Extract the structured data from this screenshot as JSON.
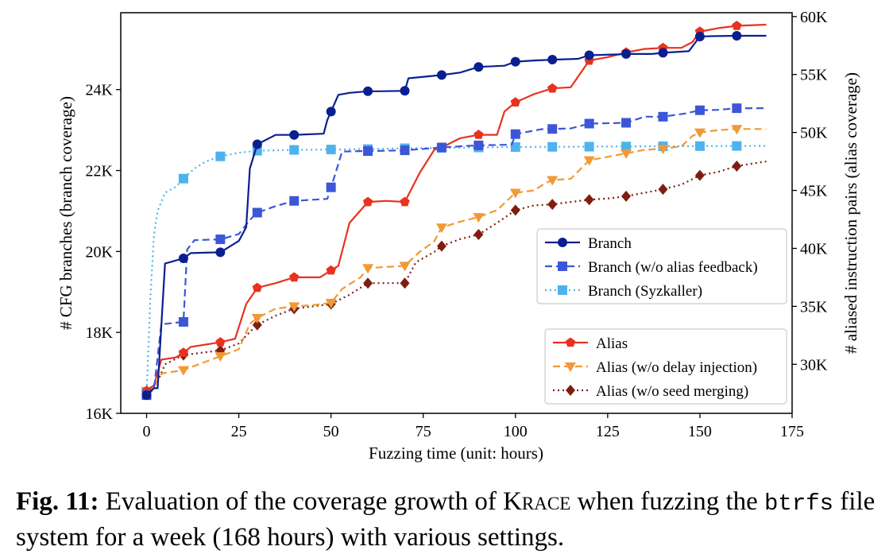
{
  "chart_data": {
    "type": "line",
    "xlabel": "Fuzzing time (unit: hours)",
    "ylabel_left": "# CFG branches (branch coverage)",
    "ylabel_right": "# aliased instruction pairs (alias coverage)",
    "xlim": [
      -7,
      175
    ],
    "ylim_left": [
      16000,
      25900
    ],
    "ylim_right": [
      25770,
      60330
    ],
    "x_ticks": [
      0,
      25,
      50,
      75,
      100,
      125,
      150,
      175
    ],
    "y_left_ticks": [
      {
        "v": 16000,
        "label": "16K"
      },
      {
        "v": 18000,
        "label": "18K"
      },
      {
        "v": 20000,
        "label": "20K"
      },
      {
        "v": 22000,
        "label": "22K"
      },
      {
        "v": 24000,
        "label": "24K"
      }
    ],
    "y_right_ticks": [
      {
        "v": 30000,
        "label": "30K"
      },
      {
        "v": 35000,
        "label": "35K"
      },
      {
        "v": 40000,
        "label": "40K"
      },
      {
        "v": 45000,
        "label": "45K"
      },
      {
        "v": 50000,
        "label": "50K"
      },
      {
        "v": 55000,
        "label": "55K"
      },
      {
        "v": 60000,
        "label": "60K"
      }
    ],
    "legend_branch": "center-right",
    "legend_alias": "lower-right",
    "grid": false,
    "series": [
      {
        "name": "Branch",
        "axis": "left",
        "color": "#0a1f8f",
        "dash": "solid",
        "marker": "circle",
        "x": [
          0,
          2,
          3,
          5,
          10,
          12,
          20,
          25,
          27,
          28,
          30,
          35,
          40,
          48,
          49,
          52,
          55,
          60,
          63,
          70,
          71,
          80,
          85,
          90,
          97,
          100,
          105,
          110,
          117,
          120,
          128,
          130,
          137,
          140,
          147,
          150,
          153,
          160,
          168
        ],
        "y": [
          16450,
          16620,
          16620,
          19700,
          19830,
          19960,
          19980,
          20260,
          20600,
          22050,
          22650,
          22880,
          22880,
          22910,
          23250,
          23870,
          23920,
          23960,
          23960,
          23970,
          24280,
          24360,
          24420,
          24560,
          24590,
          24690,
          24720,
          24740,
          24760,
          24850,
          24870,
          24880,
          24880,
          24910,
          24950,
          25310,
          25320,
          25330,
          25330
        ],
        "marker_x": [
          0,
          10,
          20,
          30,
          40,
          50,
          60,
          70,
          80,
          90,
          100,
          110,
          120,
          130,
          140,
          150,
          160
        ]
      },
      {
        "name": "Branch (w/o alias feedback)",
        "axis": "left",
        "color": "#3b57d8",
        "dash": "dashed",
        "marker": "square",
        "x": [
          0,
          2,
          4,
          10,
          11,
          13,
          20,
          25,
          28,
          30,
          35,
          40,
          49,
          51,
          53,
          58,
          60,
          70,
          80,
          89,
          99,
          100,
          107,
          115,
          120,
          130,
          135,
          140,
          146,
          150,
          155,
          160,
          168
        ],
        "y": [
          16450,
          16600,
          18200,
          18260,
          20050,
          20280,
          20300,
          20430,
          20780,
          20960,
          21120,
          21250,
          21300,
          21870,
          22470,
          22480,
          22480,
          22500,
          22570,
          22620,
          22640,
          22900,
          23020,
          23040,
          23160,
          23180,
          23330,
          23330,
          23410,
          23490,
          23500,
          23540,
          23540
        ],
        "marker_x": [
          0,
          10,
          20,
          30,
          40,
          50,
          60,
          70,
          80,
          90,
          100,
          110,
          120,
          130,
          140,
          150,
          160
        ]
      },
      {
        "name": "Branch (Syzkaller)",
        "axis": "left",
        "color": "#4db3ee",
        "dash": "dotted",
        "marker": "square",
        "x": [
          0,
          1,
          2,
          3,
          5,
          8,
          10,
          13,
          16,
          20,
          25,
          30,
          40,
          50,
          60,
          70,
          80,
          90,
          100,
          120,
          140,
          168
        ],
        "y": [
          16450,
          18800,
          20400,
          21000,
          21450,
          21600,
          21800,
          22050,
          22220,
          22350,
          22440,
          22490,
          22510,
          22520,
          22530,
          22550,
          22560,
          22570,
          22580,
          22590,
          22600,
          22610
        ],
        "marker_x": [
          0,
          10,
          20,
          30,
          40,
          50,
          60,
          70,
          80,
          90,
          100,
          110,
          120,
          130,
          140,
          150,
          160
        ]
      },
      {
        "name": "Alias",
        "axis": "right",
        "color": "#e8321f",
        "dash": "solid",
        "marker": "pentagon",
        "x": [
          0,
          2,
          4,
          8,
          10,
          12,
          20,
          24,
          27,
          30,
          35,
          40,
          47,
          50,
          52,
          55,
          60,
          65,
          70,
          74,
          78,
          80,
          85,
          90,
          95,
          97,
          100,
          105,
          110,
          115,
          120,
          125,
          130,
          135,
          140,
          145,
          148,
          150,
          155,
          160,
          168
        ],
        "y": [
          27700,
          28200,
          30400,
          30600,
          31000,
          31500,
          31900,
          32200,
          35200,
          36600,
          37000,
          37500,
          37500,
          38100,
          38500,
          42200,
          44000,
          44100,
          44000,
          46500,
          48500,
          48700,
          49500,
          49800,
          49800,
          51800,
          52600,
          53300,
          53800,
          53900,
          56200,
          56500,
          56900,
          57200,
          57300,
          57300,
          57800,
          58700,
          59000,
          59200,
          59300
        ],
        "marker_x": [
          0,
          10,
          20,
          30,
          40,
          50,
          60,
          70,
          80,
          90,
          100,
          110,
          120,
          130,
          140,
          150,
          160
        ]
      },
      {
        "name": "Alias (w/o delay injection)",
        "axis": "right",
        "color": "#f09a36",
        "dash": "dashed",
        "marker": "triangle-down",
        "x": [
          0,
          2,
          4,
          10,
          20,
          25,
          28,
          30,
          35,
          40,
          45,
          50,
          53,
          58,
          60,
          65,
          70,
          74,
          78,
          80,
          85,
          90,
          95,
          100,
          105,
          108,
          110,
          115,
          120,
          125,
          130,
          135,
          140,
          145,
          148,
          150,
          155,
          160,
          168
        ],
        "y": [
          27700,
          28000,
          29200,
          29500,
          30700,
          31300,
          33500,
          34000,
          34800,
          35000,
          35100,
          35300,
          36500,
          37500,
          38300,
          38400,
          38500,
          39700,
          40600,
          41800,
          42300,
          42700,
          43300,
          44800,
          45000,
          45600,
          45900,
          46000,
          47600,
          47900,
          48200,
          48500,
          48600,
          48800,
          49700,
          50000,
          50200,
          50300,
          50300
        ],
        "marker_x": [
          0,
          10,
          20,
          30,
          40,
          50,
          60,
          70,
          80,
          90,
          100,
          110,
          120,
          130,
          140,
          150,
          160
        ]
      },
      {
        "name": "Alias (w/o seed merging)",
        "axis": "right",
        "color": "#7e1d0f",
        "dash": "dotted",
        "marker": "diamond",
        "x": [
          0,
          3,
          5,
          10,
          15,
          20,
          25,
          28,
          30,
          35,
          40,
          50,
          55,
          60,
          70,
          73,
          78,
          80,
          85,
          90,
          95,
          100,
          105,
          110,
          115,
          120,
          125,
          130,
          135,
          140,
          145,
          150,
          155,
          160,
          168
        ],
        "y": [
          27700,
          28500,
          30000,
          30800,
          31000,
          31200,
          31800,
          32800,
          33400,
          34200,
          34800,
          35200,
          36000,
          37000,
          37000,
          38800,
          39700,
          40200,
          40800,
          41200,
          42200,
          43300,
          43700,
          43800,
          44000,
          44200,
          44300,
          44500,
          44800,
          45100,
          45500,
          46300,
          46600,
          47100,
          47500
        ],
        "marker_x": [
          0,
          10,
          20,
          30,
          40,
          50,
          60,
          70,
          80,
          90,
          100,
          110,
          120,
          130,
          140,
          150,
          160
        ]
      }
    ]
  },
  "caption": {
    "label": "Fig. 11:",
    "text_before_name": " Evaluation of the coverage growth of ",
    "system_name": "Krace",
    "text_after_name": " when fuzzing the ",
    "fs_name": "btrfs",
    "text_end": " file system for a week (168 hours) with various settings."
  }
}
